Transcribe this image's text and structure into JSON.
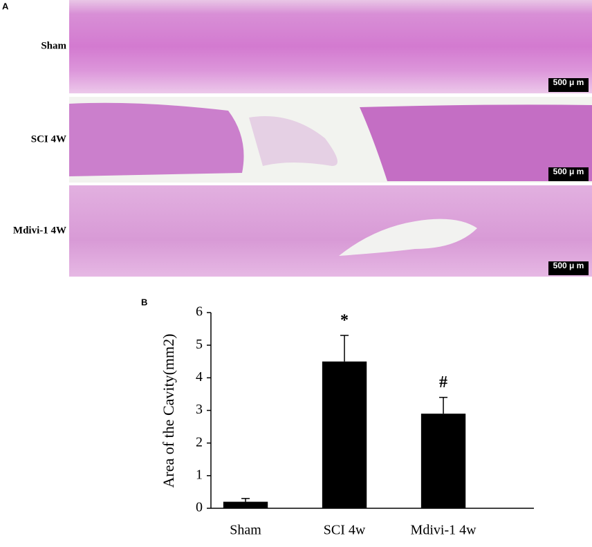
{
  "panel_a": {
    "label": "A",
    "rows": [
      {
        "label": "Sham",
        "scale_bar": "500 μ m"
      },
      {
        "label": "SCI 4W",
        "scale_bar": "500 μ m"
      },
      {
        "label": "Mdivi-1 4W",
        "scale_bar": "500 μ m"
      }
    ]
  },
  "chart_data": {
    "type": "bar",
    "panel_label": "B",
    "y_label": "Area of the Cavity(mm2)",
    "categories": [
      "Sham",
      "SCI 4w",
      "Mdivi-1 4w"
    ],
    "values": [
      0.2,
      4.5,
      2.9
    ],
    "errors": [
      0.1,
      0.8,
      0.5
    ],
    "color": "#000000",
    "ylim": [
      0,
      6
    ],
    "yticks": [
      0,
      1,
      2,
      3,
      4,
      5,
      6
    ],
    "annotations": [
      {
        "category": "SCI 4w",
        "text": "*"
      },
      {
        "category": "Mdivi-1 4w",
        "text": "#"
      }
    ]
  }
}
